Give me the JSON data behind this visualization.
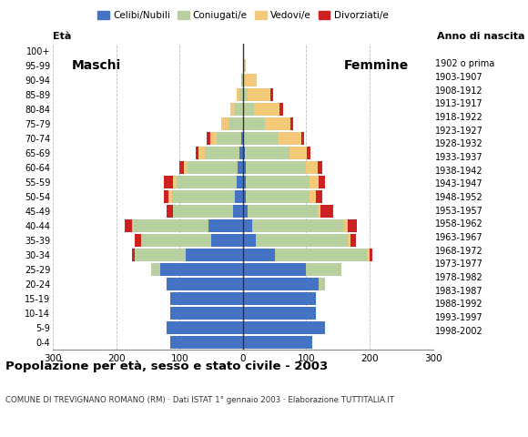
{
  "age_groups": [
    "0-4",
    "5-9",
    "10-14",
    "15-19",
    "20-24",
    "25-29",
    "30-34",
    "35-39",
    "40-44",
    "45-49",
    "50-54",
    "55-59",
    "60-64",
    "65-69",
    "70-74",
    "75-79",
    "80-84",
    "85-89",
    "90-94",
    "95-99",
    "100+"
  ],
  "birth_years": [
    "1998-2002",
    "1993-1997",
    "1988-1992",
    "1983-1987",
    "1978-1982",
    "1973-1977",
    "1968-1972",
    "1963-1967",
    "1958-1962",
    "1953-1957",
    "1948-1952",
    "1943-1947",
    "1938-1942",
    "1933-1937",
    "1928-1932",
    "1923-1927",
    "1918-1922",
    "1913-1917",
    "1908-1912",
    "1903-1907",
    "1902 o prima"
  ],
  "males": {
    "celibe": [
      115,
      120,
      115,
      115,
      120,
      130,
      90,
      50,
      55,
      15,
      12,
      10,
      8,
      5,
      2,
      0,
      0,
      0,
      0,
      0,
      0
    ],
    "coniugato": [
      0,
      0,
      0,
      0,
      0,
      15,
      80,
      110,
      120,
      95,
      100,
      95,
      80,
      55,
      40,
      22,
      12,
      5,
      3,
      0,
      0
    ],
    "vedovo": [
      0,
      0,
      0,
      0,
      0,
      0,
      0,
      0,
      0,
      0,
      5,
      5,
      5,
      10,
      10,
      12,
      8,
      5,
      0,
      0,
      0
    ],
    "divorziato": [
      0,
      0,
      0,
      0,
      0,
      0,
      5,
      10,
      12,
      10,
      8,
      15,
      8,
      5,
      5,
      0,
      0,
      0,
      0,
      0,
      0
    ]
  },
  "females": {
    "nubile": [
      110,
      130,
      115,
      115,
      120,
      100,
      50,
      20,
      15,
      8,
      5,
      5,
      5,
      3,
      2,
      0,
      0,
      0,
      0,
      0,
      0
    ],
    "coniugata": [
      0,
      0,
      0,
      0,
      10,
      55,
      145,
      145,
      145,
      110,
      100,
      100,
      95,
      70,
      55,
      35,
      18,
      8,
      2,
      0,
      0
    ],
    "vedova": [
      0,
      0,
      0,
      0,
      0,
      0,
      5,
      5,
      5,
      5,
      10,
      15,
      18,
      28,
      35,
      40,
      40,
      35,
      20,
      5,
      0
    ],
    "divorziata": [
      0,
      0,
      0,
      0,
      0,
      0,
      5,
      8,
      15,
      20,
      10,
      10,
      8,
      5,
      5,
      5,
      5,
      5,
      0,
      0,
      0
    ]
  },
  "colors": {
    "celibe": "#4472c4",
    "coniugato": "#b8cfa0",
    "vedovo": "#f5c97a",
    "divorziato": "#cc2222"
  },
  "xlim": 300,
  "title": "Popolazione per età, sesso e stato civile - 2003",
  "subtitle": "COMUNE DI TREVIGNANO ROMANO (RM) · Dati ISTAT 1° gennaio 2003 · Elaborazione TUTTITALIA.IT",
  "ylabel_left": "Età",
  "ylabel_right": "Anno di nascita",
  "legend_labels": [
    "Celibi/Nubili",
    "Coniugati/e",
    "Vedovi/e",
    "Divorziati/e"
  ],
  "background_color": "#ffffff",
  "grid_color": "#bbbbbb"
}
